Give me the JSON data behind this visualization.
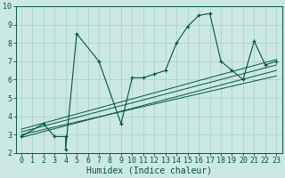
{
  "xlabel": "Humidex (Indice chaleur)",
  "bg_color": "#cce8e4",
  "grid_color": "#aad4cc",
  "line_color": "#005544",
  "xlim": [
    -0.5,
    23.5
  ],
  "ylim": [
    2,
    10
  ],
  "xticks": [
    0,
    1,
    2,
    3,
    4,
    5,
    6,
    7,
    8,
    9,
    10,
    11,
    12,
    13,
    14,
    15,
    16,
    17,
    18,
    19,
    20,
    21,
    22,
    23
  ],
  "yticks": [
    2,
    3,
    4,
    5,
    6,
    7,
    8,
    9,
    10
  ],
  "series": [
    [
      0,
      2.9
    ],
    [
      2,
      3.6
    ],
    [
      3,
      2.9
    ],
    [
      4,
      2.9
    ],
    [
      4,
      2.2
    ],
    [
      5,
      8.5
    ],
    [
      7,
      7.0
    ],
    [
      9,
      3.6
    ],
    [
      10,
      6.1
    ],
    [
      11,
      6.1
    ],
    [
      12,
      6.3
    ],
    [
      13,
      6.5
    ],
    [
      14,
      8.0
    ],
    [
      15,
      8.9
    ],
    [
      16,
      9.5
    ],
    [
      17,
      9.6
    ],
    [
      18,
      7.0
    ],
    [
      19,
      6.5
    ],
    [
      20,
      6.0
    ],
    [
      21,
      8.1
    ],
    [
      22,
      6.8
    ],
    [
      23,
      7.0
    ]
  ],
  "reg_lines": [
    {
      "x0": 0,
      "y0": 2.85,
      "x1": 23,
      "y1": 6.5
    },
    {
      "x0": 0,
      "y0": 3.0,
      "x1": 23,
      "y1": 6.2
    },
    {
      "x0": 0,
      "y0": 3.15,
      "x1": 23,
      "y1": 6.8
    },
    {
      "x0": 0,
      "y0": 3.3,
      "x1": 23,
      "y1": 7.1
    }
  ],
  "xlabel_fontsize": 7,
  "tick_fontsize": 6
}
